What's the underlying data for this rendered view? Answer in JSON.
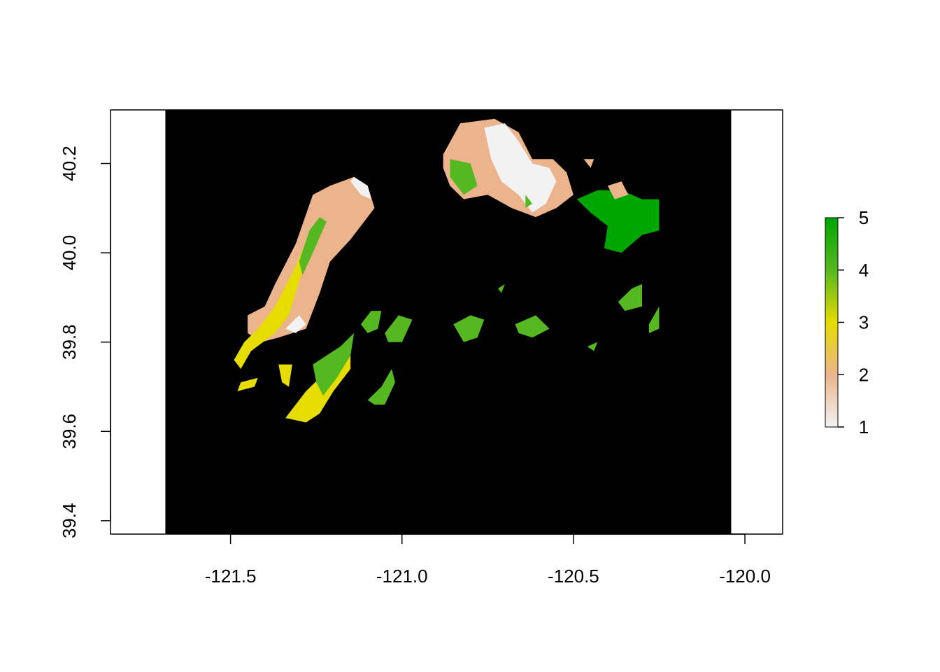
{
  "chart_data": {
    "type": "heatmap",
    "title": "",
    "xlabel": "",
    "ylabel": "",
    "xlim": [
      -121.85,
      -119.89
    ],
    "ylim": [
      39.37,
      40.32
    ],
    "raster_extent": {
      "xmin": -121.69,
      "xmax": -120.04,
      "ymin": 39.37,
      "ymax": 40.32
    },
    "background_value_color": "#000000",
    "x_ticks": [
      {
        "value": -121.5,
        "label": "-121.5"
      },
      {
        "value": -121.0,
        "label": "-121.0"
      },
      {
        "value": -120.5,
        "label": "-120.5"
      },
      {
        "value": -120.0,
        "label": "-120.0"
      }
    ],
    "y_ticks": [
      {
        "value": 39.4,
        "label": "39.4"
      },
      {
        "value": 39.6,
        "label": "39.6"
      },
      {
        "value": 39.8,
        "label": "39.8"
      },
      {
        "value": 40.0,
        "label": "40.0"
      },
      {
        "value": 40.2,
        "label": "40.2"
      }
    ],
    "legend": {
      "placement": "right",
      "min": 1,
      "max": 5,
      "ticks": [
        {
          "value": 1,
          "label": "1"
        },
        {
          "value": 2,
          "label": "2"
        },
        {
          "value": 3,
          "label": "3"
        },
        {
          "value": 4,
          "label": "4"
        },
        {
          "value": 5,
          "label": "5"
        }
      ],
      "colors": [
        "#f2f2f2",
        "#ebb48c",
        "#e6dc00",
        "#55b820",
        "#00a600"
      ]
    },
    "regions": [
      {
        "name": "",
        "value": 2,
        "polygon": [
          [
            -121.45,
            39.86
          ],
          [
            -121.4,
            39.88
          ],
          [
            -121.37,
            39.93
          ],
          [
            -121.31,
            40.02
          ],
          [
            -121.26,
            40.13
          ],
          [
            -121.21,
            40.15
          ],
          [
            -121.14,
            40.17
          ],
          [
            -121.1,
            40.15
          ],
          [
            -121.08,
            40.1
          ],
          [
            -121.15,
            40.03
          ],
          [
            -121.21,
            39.98
          ],
          [
            -121.24,
            39.91
          ],
          [
            -121.28,
            39.83
          ],
          [
            -121.36,
            39.81
          ],
          [
            -121.41,
            39.8
          ],
          [
            -121.45,
            39.82
          ]
        ]
      },
      {
        "name": "",
        "value": 1,
        "polygon": [
          [
            -121.34,
            39.83
          ],
          [
            -121.3,
            39.86
          ],
          [
            -121.28,
            39.84
          ],
          [
            -121.31,
            39.82
          ]
        ]
      },
      {
        "name": "",
        "value": 1,
        "polygon": [
          [
            -121.14,
            40.17
          ],
          [
            -121.1,
            40.15
          ],
          [
            -121.09,
            40.12
          ],
          [
            -121.12,
            40.13
          ],
          [
            -121.15,
            40.16
          ]
        ]
      },
      {
        "name": "",
        "value": 3,
        "polygon": [
          [
            -121.46,
            39.8
          ],
          [
            -121.42,
            39.83
          ],
          [
            -121.37,
            39.88
          ],
          [
            -121.31,
            39.97
          ],
          [
            -121.26,
            40.06
          ],
          [
            -121.24,
            40.05
          ],
          [
            -121.29,
            39.96
          ],
          [
            -121.33,
            39.86
          ],
          [
            -121.37,
            39.82
          ],
          [
            -121.44,
            39.78
          ],
          [
            -121.47,
            39.74
          ],
          [
            -121.49,
            39.76
          ]
        ]
      },
      {
        "name": "",
        "value": 4,
        "polygon": [
          [
            -121.3,
            39.98
          ],
          [
            -121.27,
            40.05
          ],
          [
            -121.24,
            40.08
          ],
          [
            -121.22,
            40.07
          ],
          [
            -121.26,
            40.0
          ],
          [
            -121.29,
            39.95
          ]
        ]
      },
      {
        "name": "",
        "value": 3,
        "polygon": [
          [
            -121.47,
            39.71
          ],
          [
            -121.42,
            39.72
          ],
          [
            -121.43,
            39.7
          ],
          [
            -121.48,
            39.69
          ]
        ]
      },
      {
        "name": "",
        "value": 3,
        "polygon": [
          [
            -121.36,
            39.75
          ],
          [
            -121.32,
            39.75
          ],
          [
            -121.33,
            39.7
          ],
          [
            -121.35,
            39.71
          ]
        ]
      },
      {
        "name": "",
        "value": 3,
        "polygon": [
          [
            -121.33,
            39.64
          ],
          [
            -121.28,
            39.69
          ],
          [
            -121.24,
            39.72
          ],
          [
            -121.18,
            39.76
          ],
          [
            -121.15,
            39.78
          ],
          [
            -121.15,
            39.74
          ],
          [
            -121.2,
            39.69
          ],
          [
            -121.24,
            39.64
          ],
          [
            -121.28,
            39.62
          ],
          [
            -121.34,
            39.63
          ]
        ]
      },
      {
        "name": "",
        "value": 4,
        "polygon": [
          [
            -121.24,
            39.76
          ],
          [
            -121.18,
            39.79
          ],
          [
            -121.14,
            39.82
          ],
          [
            -121.15,
            39.77
          ],
          [
            -121.19,
            39.72
          ],
          [
            -121.23,
            39.68
          ],
          [
            -121.25,
            39.71
          ],
          [
            -121.26,
            39.75
          ]
        ]
      },
      {
        "name": "",
        "value": 4,
        "polygon": [
          [
            -121.12,
            39.84
          ],
          [
            -121.09,
            39.87
          ],
          [
            -121.06,
            39.87
          ],
          [
            -121.07,
            39.83
          ],
          [
            -121.1,
            39.82
          ]
        ]
      },
      {
        "name": "",
        "value": 4,
        "polygon": [
          [
            -121.05,
            39.82
          ],
          [
            -121.01,
            39.86
          ],
          [
            -120.97,
            39.85
          ],
          [
            -121.0,
            39.8
          ],
          [
            -121.04,
            39.8
          ]
        ]
      },
      {
        "name": "",
        "value": 4,
        "polygon": [
          [
            -121.1,
            39.67
          ],
          [
            -121.06,
            39.7
          ],
          [
            -121.03,
            39.74
          ],
          [
            -121.02,
            39.71
          ],
          [
            -121.05,
            39.66
          ],
          [
            -121.08,
            39.66
          ]
        ]
      },
      {
        "name": "",
        "value": 4,
        "polygon": [
          [
            -120.85,
            39.84
          ],
          [
            -120.8,
            39.86
          ],
          [
            -120.76,
            39.85
          ],
          [
            -120.78,
            39.81
          ],
          [
            -120.82,
            39.8
          ]
        ]
      },
      {
        "name": "",
        "value": 4,
        "polygon": [
          [
            -120.67,
            39.84
          ],
          [
            -120.61,
            39.86
          ],
          [
            -120.57,
            39.83
          ],
          [
            -120.62,
            39.81
          ],
          [
            -120.66,
            39.82
          ]
        ]
      },
      {
        "name": "",
        "value": 4,
        "polygon": [
          [
            -120.33,
            39.92
          ],
          [
            -120.3,
            39.93
          ],
          [
            -120.3,
            39.88
          ],
          [
            -120.35,
            39.87
          ],
          [
            -120.37,
            39.89
          ]
        ]
      },
      {
        "name": "",
        "value": 4,
        "polygon": [
          [
            -120.28,
            39.84
          ],
          [
            -120.25,
            39.88
          ],
          [
            -120.25,
            39.83
          ],
          [
            -120.28,
            39.82
          ]
        ]
      },
      {
        "name": "",
        "value": 4,
        "polygon": [
          [
            -120.72,
            39.92
          ],
          [
            -120.7,
            39.93
          ],
          [
            -120.71,
            39.91
          ]
        ]
      },
      {
        "name": "",
        "value": 4,
        "polygon": [
          [
            -120.46,
            39.79
          ],
          [
            -120.43,
            39.8
          ],
          [
            -120.44,
            39.78
          ]
        ]
      },
      {
        "name": "",
        "value": 2,
        "polygon": [
          [
            -120.88,
            40.22
          ],
          [
            -120.83,
            40.29
          ],
          [
            -120.73,
            40.3
          ],
          [
            -120.66,
            40.27
          ],
          [
            -120.62,
            40.21
          ],
          [
            -120.56,
            40.21
          ],
          [
            -120.52,
            40.18
          ],
          [
            -120.5,
            40.13
          ],
          [
            -120.55,
            40.1
          ],
          [
            -120.61,
            40.08
          ],
          [
            -120.68,
            40.1
          ],
          [
            -120.75,
            40.13
          ],
          [
            -120.82,
            40.12
          ],
          [
            -120.86,
            40.15
          ],
          [
            -120.88,
            40.19
          ]
        ]
      },
      {
        "name": "",
        "value": 1,
        "polygon": [
          [
            -120.76,
            40.28
          ],
          [
            -120.7,
            40.29
          ],
          [
            -120.66,
            40.25
          ],
          [
            -120.62,
            40.2
          ],
          [
            -120.57,
            40.19
          ],
          [
            -120.55,
            40.16
          ],
          [
            -120.58,
            40.11
          ],
          [
            -120.62,
            40.09
          ],
          [
            -120.66,
            40.13
          ],
          [
            -120.71,
            40.16
          ],
          [
            -120.74,
            40.21
          ]
        ]
      },
      {
        "name": "",
        "value": 4,
        "polygon": [
          [
            -120.86,
            40.21
          ],
          [
            -120.8,
            40.2
          ],
          [
            -120.78,
            40.15
          ],
          [
            -120.82,
            40.13
          ],
          [
            -120.86,
            40.17
          ]
        ]
      },
      {
        "name": "",
        "value": 4,
        "polygon": [
          [
            -120.64,
            40.13
          ],
          [
            -120.62,
            40.11
          ],
          [
            -120.64,
            40.1
          ]
        ]
      },
      {
        "name": "",
        "value": 5,
        "polygon": [
          [
            -120.49,
            40.12
          ],
          [
            -120.43,
            40.14
          ],
          [
            -120.36,
            40.14
          ],
          [
            -120.3,
            40.12
          ],
          [
            -120.25,
            40.12
          ],
          [
            -120.25,
            40.05
          ],
          [
            -120.3,
            40.04
          ],
          [
            -120.36,
            40.0
          ],
          [
            -120.41,
            40.01
          ],
          [
            -120.4,
            40.06
          ],
          [
            -120.45,
            40.09
          ]
        ]
      },
      {
        "name": "",
        "value": 2,
        "polygon": [
          [
            -120.4,
            40.15
          ],
          [
            -120.36,
            40.16
          ],
          [
            -120.34,
            40.13
          ],
          [
            -120.38,
            40.12
          ]
        ]
      },
      {
        "name": "",
        "value": 2,
        "polygon": [
          [
            -120.47,
            40.21
          ],
          [
            -120.44,
            40.21
          ],
          [
            -120.45,
            40.19
          ]
        ]
      }
    ]
  }
}
